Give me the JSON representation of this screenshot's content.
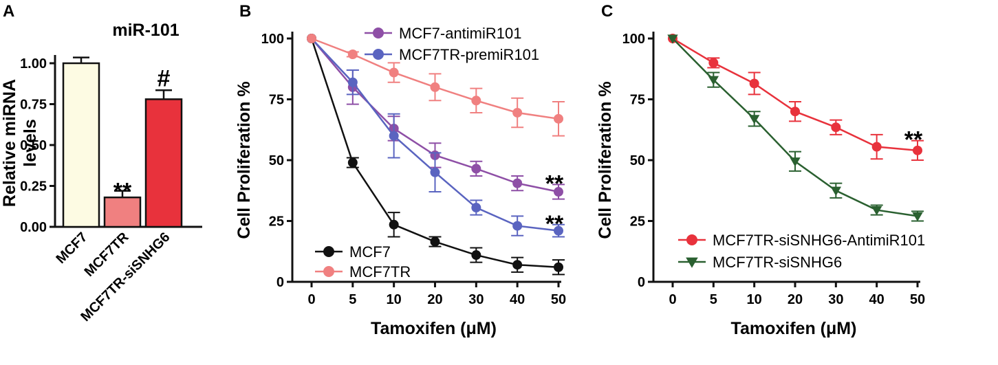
{
  "panel_labels": [
    "A",
    "B",
    "C"
  ],
  "chart_data": [
    {
      "type": "bar",
      "title": "miR-101",
      "xlabel": "",
      "ylabel": "Relative miRNA levels",
      "ylabel_lines": [
        "Relative miRNA",
        "levels"
      ],
      "ylim": [
        0,
        1.0
      ],
      "yticks": [
        "0.00",
        "0.25",
        "0.50",
        "0.75",
        "1.00"
      ],
      "yticks_values": [
        0,
        0.25,
        0.5,
        0.75,
        1.0
      ],
      "categories": [
        "MCF7",
        "MCF7TR",
        "MCF7TR-siSNHG6"
      ],
      "values": [
        1.0,
        0.18,
        0.78
      ],
      "errors": [
        0.035,
        0.04,
        0.055
      ],
      "bar_colors": [
        "#fdfbe3",
        "#f08080",
        "#e8323c"
      ],
      "annotations": [
        {
          "category": "MCF7TR",
          "text": "**"
        },
        {
          "category": "MCF7TR-siSNHG6",
          "text": "#"
        }
      ]
    },
    {
      "type": "line",
      "title": "",
      "xlabel": "Tamoxifen (μM)",
      "ylabel": "Cell Proliferation %",
      "categories": [
        "0",
        "5",
        "10",
        "20",
        "30",
        "40",
        "50"
      ],
      "ylim": [
        0,
        100
      ],
      "yticks": [
        "0",
        "25",
        "50",
        "75",
        "100"
      ],
      "yticks_values": [
        0,
        25,
        50,
        75,
        100
      ],
      "series": [
        {
          "name": "MCF7-antimiR101",
          "color": "#8e4fa6",
          "marker": "circle",
          "values": [
            100,
            80,
            63,
            52,
            46.5,
            40.5,
            37
          ],
          "errors": [
            0,
            7,
            5,
            5,
            3,
            3,
            3
          ]
        },
        {
          "name": "MCF7TR-premiR101",
          "color": "#5a64c0",
          "marker": "circle",
          "values": [
            100,
            82,
            60,
            45,
            30.5,
            23,
            21
          ],
          "errors": [
            0,
            5,
            9,
            8,
            3,
            4,
            2.5
          ]
        },
        {
          "name": "MCF7",
          "color": "#111111",
          "marker": "circle",
          "values": [
            100,
            49,
            23.5,
            16.5,
            11,
            7,
            6
          ],
          "errors": [
            0,
            2,
            5,
            2,
            3,
            3,
            3
          ]
        },
        {
          "name": "MCF7TR",
          "color": "#f08080",
          "marker": "circle",
          "values": [
            100,
            93.5,
            86,
            80,
            74.5,
            69.5,
            67
          ],
          "errors": [
            0,
            1,
            4,
            5.5,
            5,
            6,
            7
          ]
        }
      ],
      "legend_top": [
        "MCF7-antimiR101",
        "MCF7TR-premiR101"
      ],
      "legend_bottom": [
        "MCF7",
        "MCF7TR"
      ],
      "annotations": [
        {
          "series": "MCF7-antimiR101",
          "text": "**"
        },
        {
          "series": "MCF7TR-premiR101",
          "text": "**"
        }
      ]
    },
    {
      "type": "line",
      "title": "",
      "xlabel": "Tamoxifen (μM)",
      "ylabel": "Cell Proliferation %",
      "categories": [
        "0",
        "5",
        "10",
        "20",
        "30",
        "40",
        "50"
      ],
      "ylim": [
        0,
        100
      ],
      "yticks": [
        "0",
        "25",
        "50",
        "75",
        "100"
      ],
      "yticks_values": [
        0,
        25,
        50,
        75,
        100
      ],
      "series": [
        {
          "name": "MCF7TR-siSNHG6-AntimiR101",
          "color": "#e8323c",
          "marker": "circle",
          "values": [
            100,
            90,
            81.5,
            70,
            63.5,
            55.5,
            54
          ],
          "errors": [
            0,
            2,
            4.5,
            4,
            3,
            5,
            4
          ]
        },
        {
          "name": "MCF7TR-siSNHG6",
          "color": "#2a6030",
          "marker": "triangle-down",
          "values": [
            100,
            83,
            67,
            49.5,
            37.5,
            29.5,
            27
          ],
          "errors": [
            0,
            3,
            3,
            4,
            3,
            2,
            2
          ]
        }
      ],
      "annotations": [
        {
          "series": "MCF7TR-siSNHG6-AntimiR101",
          "text": "**"
        }
      ]
    }
  ]
}
